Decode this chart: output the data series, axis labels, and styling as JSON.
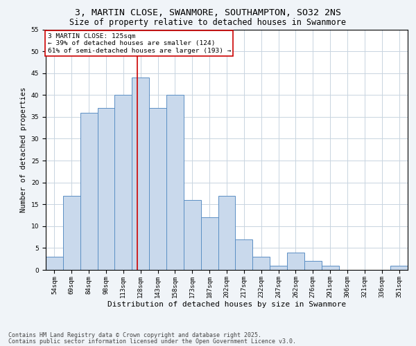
{
  "title_line1": "3, MARTIN CLOSE, SWANMORE, SOUTHAMPTON, SO32 2NS",
  "title_line2": "Size of property relative to detached houses in Swanmore",
  "xlabel": "Distribution of detached houses by size in Swanmore",
  "ylabel": "Number of detached properties",
  "categories": [
    "54sqm",
    "69sqm",
    "84sqm",
    "98sqm",
    "113sqm",
    "128sqm",
    "143sqm",
    "158sqm",
    "173sqm",
    "187sqm",
    "202sqm",
    "217sqm",
    "232sqm",
    "247sqm",
    "262sqm",
    "276sqm",
    "291sqm",
    "306sqm",
    "321sqm",
    "336sqm",
    "351sqm"
  ],
  "values": [
    3,
    17,
    36,
    37,
    40,
    44,
    37,
    40,
    16,
    12,
    17,
    7,
    3,
    1,
    4,
    2,
    1,
    0,
    0,
    0,
    1
  ],
  "bar_color": "#c9d9ec",
  "bar_edge_color": "#5b8fc4",
  "vline_color": "#cc0000",
  "annotation_text": "3 MARTIN CLOSE: 125sqm\n← 39% of detached houses are smaller (124)\n61% of semi-detached houses are larger (193) →",
  "annotation_box_color": "#ffffff",
  "annotation_box_edge": "#cc0000",
  "ylim": [
    0,
    55
  ],
  "yticks": [
    0,
    5,
    10,
    15,
    20,
    25,
    30,
    35,
    40,
    45,
    50,
    55
  ],
  "footer_line1": "Contains HM Land Registry data © Crown copyright and database right 2025.",
  "footer_line2": "Contains public sector information licensed under the Open Government Licence v3.0.",
  "bg_color": "#f0f4f8",
  "plot_bg_color": "#ffffff",
  "grid_color": "#c8d4e0",
  "title_fontsize": 9.5,
  "subtitle_fontsize": 8.5,
  "tick_fontsize": 6.5,
  "ylabel_fontsize": 7.5,
  "xlabel_fontsize": 8,
  "annotation_fontsize": 6.8,
  "footer_fontsize": 6
}
